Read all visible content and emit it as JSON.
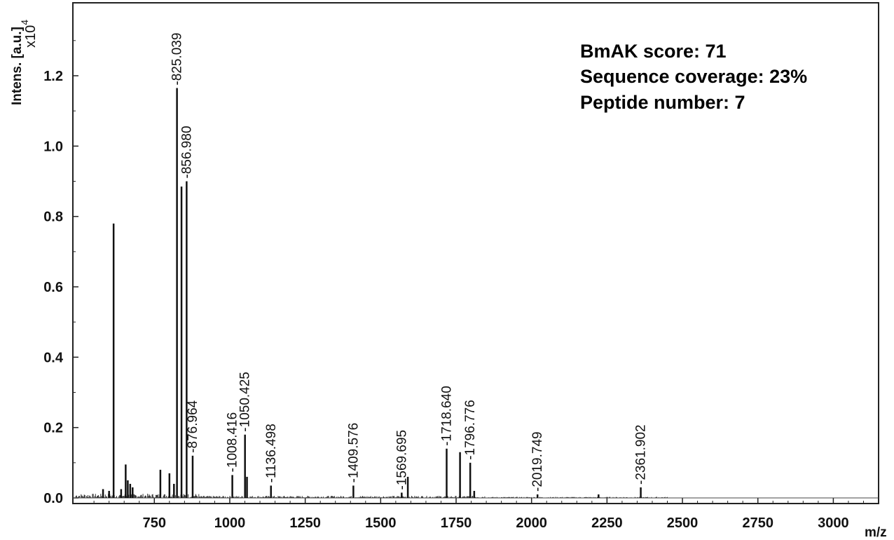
{
  "chart_data": {
    "type": "line",
    "title": "",
    "xlabel": "m/z",
    "ylabel": "Intens. [a.u.]",
    "y_multiplier_prefix": "x10",
    "y_multiplier_exp": "4",
    "xlim": [
      480,
      3150
    ],
    "ylim": [
      -0.02,
      1.45
    ],
    "x_ticks": [
      750,
      1000,
      1250,
      1500,
      1750,
      2000,
      2250,
      2500,
      2750,
      3000
    ],
    "x_tick_labels": [
      "750",
      "1000",
      "1250",
      "1500",
      "1750",
      "2000",
      "2250",
      "2500",
      "2750",
      "3000"
    ],
    "y_ticks": [
      0.0,
      0.2,
      0.4,
      0.6,
      0.8,
      1.0,
      1.2
    ],
    "y_tick_labels": [
      "0.0",
      "0.2",
      "0.4",
      "0.6",
      "0.8",
      "1.0",
      "1.2"
    ],
    "annotations": [
      "BmAK score: 71",
      "Sequence coverage: 23%",
      "Peptide number: 7"
    ],
    "labeled_peaks": [
      {
        "mz": 825.039,
        "intensity": 1.165,
        "label": "825.039"
      },
      {
        "mz": 856.98,
        "intensity": 0.9,
        "label": "856.980"
      },
      {
        "mz": 876.964,
        "intensity": 0.12,
        "label": "876.964"
      },
      {
        "mz": 1008.416,
        "intensity": 0.065,
        "label": "1008.416"
      },
      {
        "mz": 1050.425,
        "intensity": 0.18,
        "label": "1050.425"
      },
      {
        "mz": 1136.498,
        "intensity": 0.035,
        "label": "1136.498"
      },
      {
        "mz": 1409.576,
        "intensity": 0.035,
        "label": "1409.576"
      },
      {
        "mz": 1569.695,
        "intensity": 0.015,
        "label": "1569.695"
      },
      {
        "mz": 1718.64,
        "intensity": 0.14,
        "label": "1718.640"
      },
      {
        "mz": 1796.776,
        "intensity": 0.1,
        "label": "1796.776"
      },
      {
        "mz": 2019.749,
        "intensity": 0.01,
        "label": "2019.749"
      },
      {
        "mz": 2361.902,
        "intensity": 0.03,
        "label": "2361.902"
      }
    ],
    "unlabeled_peaks": [
      {
        "mz": 615,
        "intensity": 0.78
      },
      {
        "mz": 840,
        "intensity": 0.885
      },
      {
        "mz": 655,
        "intensity": 0.095
      },
      {
        "mz": 662,
        "intensity": 0.05
      },
      {
        "mz": 670,
        "intensity": 0.04
      },
      {
        "mz": 678,
        "intensity": 0.03
      },
      {
        "mz": 770,
        "intensity": 0.08
      },
      {
        "mz": 800,
        "intensity": 0.07
      },
      {
        "mz": 815,
        "intensity": 0.04
      },
      {
        "mz": 1057,
        "intensity": 0.06
      },
      {
        "mz": 1590,
        "intensity": 0.06
      },
      {
        "mz": 1763,
        "intensity": 0.13
      },
      {
        "mz": 1810,
        "intensity": 0.02
      },
      {
        "mz": 580,
        "intensity": 0.025
      },
      {
        "mz": 600,
        "intensity": 0.02
      },
      {
        "mz": 640,
        "intensity": 0.025
      },
      {
        "mz": 2222,
        "intensity": 0.01
      }
    ]
  }
}
